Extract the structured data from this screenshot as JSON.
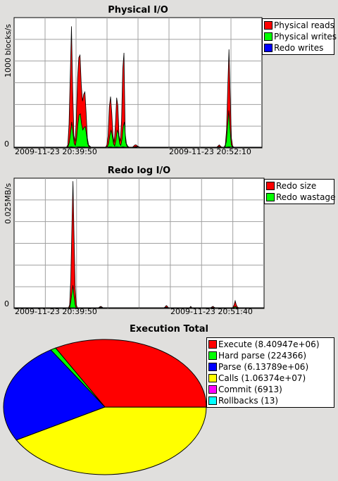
{
  "chart_data": [
    {
      "type": "area",
      "title": "Physical I/O",
      "ylabel": "1000 blocks/s",
      "yticks": [
        "0",
        "1000"
      ],
      "ylim": [
        0,
        1120
      ],
      "xticks": [
        "2009-11-23 20:39:50",
        "2009-11-23 20:52:10"
      ],
      "legend": "right",
      "grid": true,
      "series": [
        {
          "name": "Physical reads",
          "color": "#ff0000",
          "values": [
            0,
            0,
            0,
            0,
            0,
            0,
            0,
            0,
            0,
            0,
            0,
            0,
            0,
            0,
            0,
            0,
            0,
            0,
            0,
            0,
            0,
            0,
            0,
            0,
            0,
            0,
            0,
            0,
            0,
            0,
            0,
            0,
            0,
            0,
            0,
            0,
            0,
            0,
            0,
            0,
            0,
            0,
            0,
            0,
            20,
            200,
            620,
            1050,
            500,
            100,
            50,
            250,
            600,
            780,
            800,
            550,
            400,
            460,
            480,
            300,
            80,
            20,
            10,
            0,
            0,
            0,
            0,
            0,
            0,
            0,
            0,
            0,
            0,
            0,
            0,
            0,
            20,
            100,
            350,
            440,
            300,
            100,
            40,
            200,
            430,
            360,
            100,
            50,
            230,
            680,
            820,
            120,
            30,
            10,
            0,
            0,
            0,
            0,
            10,
            20,
            20,
            10,
            5,
            0,
            0,
            0,
            0,
            0,
            0,
            0,
            0,
            0,
            0,
            0,
            0,
            0,
            0,
            0,
            0,
            0,
            0,
            0,
            0,
            0,
            0,
            0,
            0,
            0,
            0,
            0,
            0,
            0,
            0,
            0,
            0,
            0,
            0,
            0,
            0,
            0,
            0,
            0,
            0,
            0,
            0,
            0,
            0,
            0,
            0,
            0,
            0,
            0,
            0,
            0,
            0,
            0,
            0,
            0,
            0,
            0,
            0,
            0,
            0,
            0,
            0,
            0,
            0,
            10,
            20,
            10,
            0,
            0,
            0,
            20,
            150,
            520,
            850,
            450,
            80,
            10,
            0,
            0,
            0,
            0,
            0,
            0,
            0,
            0,
            0,
            0,
            0,
            0,
            0,
            0,
            0,
            0,
            0,
            0,
            0,
            0,
            0,
            0,
            0,
            0
          ]
        },
        {
          "name": "Physical writes",
          "color": "#00ff00",
          "values": [
            0,
            0,
            0,
            0,
            0,
            0,
            0,
            0,
            0,
            0,
            0,
            0,
            0,
            0,
            0,
            0,
            0,
            0,
            0,
            0,
            0,
            0,
            0,
            0,
            0,
            0,
            0,
            0,
            0,
            0,
            0,
            0,
            0,
            0,
            0,
            0,
            0,
            0,
            0,
            0,
            0,
            0,
            0,
            0,
            5,
            40,
            120,
            220,
            120,
            30,
            15,
            80,
            200,
            280,
            290,
            200,
            150,
            170,
            180,
            110,
            30,
            5,
            2,
            0,
            0,
            0,
            0,
            0,
            0,
            0,
            0,
            0,
            0,
            0,
            0,
            0,
            5,
            30,
            100,
            150,
            100,
            30,
            10,
            60,
            150,
            120,
            30,
            15,
            70,
            180,
            220,
            40,
            10,
            3,
            0,
            0,
            0,
            0,
            2,
            5,
            5,
            2,
            1,
            0,
            0,
            0,
            0,
            0,
            0,
            0,
            0,
            0,
            0,
            0,
            0,
            0,
            0,
            0,
            0,
            0,
            0,
            0,
            0,
            0,
            0,
            0,
            0,
            0,
            0,
            0,
            0,
            0,
            0,
            0,
            0,
            0,
            0,
            0,
            0,
            0,
            0,
            0,
            0,
            0,
            0,
            0,
            0,
            0,
            0,
            0,
            0,
            0,
            0,
            0,
            0,
            0,
            0,
            0,
            0,
            0,
            0,
            0,
            0,
            0,
            0,
            0,
            2,
            5,
            2,
            0,
            0,
            0,
            5,
            50,
            180,
            320,
            160,
            20,
            2,
            0,
            0,
            0,
            0,
            0,
            0,
            0,
            0,
            0,
            0,
            0,
            0,
            0,
            0,
            0,
            0,
            0,
            0,
            0,
            0,
            0,
            0,
            0,
            0
          ]
        },
        {
          "name": "Redo writes",
          "color": "#0000ff",
          "values": [
            0,
            0,
            0,
            0,
            0,
            0,
            0,
            0,
            0,
            0,
            0,
            0,
            0,
            0,
            0,
            0,
            0,
            0,
            0,
            0,
            0,
            0,
            0,
            0,
            0,
            0,
            0,
            0,
            0,
            0,
            0,
            0,
            0,
            0,
            0,
            0,
            0,
            0,
            0,
            0,
            0,
            0,
            0,
            0,
            0,
            1,
            2,
            3,
            2,
            1,
            0,
            1,
            2,
            3,
            3,
            2,
            2,
            2,
            2,
            1,
            1,
            0,
            0,
            0,
            0,
            0,
            0,
            0,
            0,
            0,
            0,
            0,
            0,
            0,
            0,
            0,
            0,
            1,
            2,
            2,
            2,
            1,
            0,
            1,
            2,
            2,
            1,
            0,
            1,
            2,
            3,
            1,
            0,
            0,
            0,
            0,
            0,
            0,
            0,
            0,
            0,
            0,
            0,
            0,
            0,
            0,
            0,
            0,
            0,
            0,
            0,
            0,
            0,
            0,
            0,
            0,
            0,
            0,
            0,
            0,
            0,
            0,
            0,
            0,
            0,
            0,
            0,
            0,
            0,
            0,
            0,
            0,
            0,
            0,
            0,
            0,
            0,
            0,
            0,
            0,
            0,
            0,
            0,
            0,
            0,
            0,
            0,
            0,
            0,
            0,
            0,
            0,
            0,
            0,
            0,
            0,
            0,
            0,
            0,
            0,
            0,
            0,
            0,
            0,
            0,
            0,
            0,
            0,
            0,
            0,
            0,
            0,
            0,
            0,
            0,
            1,
            2,
            3,
            2,
            1,
            0,
            0,
            0,
            0,
            0,
            0,
            0,
            0,
            0,
            0,
            0,
            0,
            0,
            0,
            0,
            0,
            0,
            0,
            0,
            0,
            0,
            0,
            0,
            0,
            0
          ]
        }
      ]
    },
    {
      "type": "area",
      "title": "Redo log I/O",
      "ylabel": "MB/s",
      "yticks": [
        "0",
        "0.025"
      ],
      "ylim": [
        0,
        0.0458
      ],
      "xticks": [
        "2009-11-23 20:39:50",
        "2009-11-23 20:51:40"
      ],
      "legend": "right",
      "grid": true,
      "series": [
        {
          "name": "Redo size",
          "color": "#ff0000",
          "values": [
            0,
            0,
            0,
            0,
            0,
            0,
            0,
            0,
            0,
            0,
            0,
            0,
            0,
            0,
            0,
            0,
            0,
            0,
            0,
            0,
            0,
            0,
            0,
            0,
            0,
            0,
            0,
            0,
            0,
            0,
            0,
            0,
            0,
            0,
            0,
            0,
            0,
            0,
            0,
            0,
            0,
            0,
            0,
            0,
            0,
            0,
            0,
            0,
            0,
            0,
            0.001,
            0.01,
            0.028,
            0.045,
            0.025,
            0.007,
            0.001,
            0,
            0,
            0,
            0,
            0,
            0,
            0,
            0,
            0,
            0,
            0,
            0,
            0,
            0,
            0,
            0,
            0,
            0,
            0,
            0,
            0.0003,
            0.0005,
            0.0003,
            0,
            0,
            0,
            0,
            0,
            0,
            0,
            0,
            0,
            0,
            0,
            0,
            0,
            0,
            0,
            0,
            0,
            0,
            0,
            0,
            0,
            0,
            0,
            0,
            0,
            0,
            0,
            0,
            0,
            0,
            0,
            0,
            0,
            0,
            0,
            0,
            0,
            0,
            0,
            0,
            0,
            0,
            0,
            0,
            0,
            0,
            0,
            0,
            0,
            0,
            0,
            0,
            0,
            0,
            0,
            0,
            0.0003,
            0.0008,
            0.0005,
            0,
            0,
            0,
            0,
            0,
            0,
            0,
            0,
            0,
            0,
            0,
            0,
            0,
            0,
            0,
            0,
            0,
            0,
            0,
            0,
            0.0005,
            0,
            0,
            0,
            0,
            0,
            0,
            0,
            0,
            0,
            0,
            0,
            0,
            0,
            0,
            0,
            0,
            0,
            0,
            0.0003,
            0.0005,
            0.0002,
            0,
            0,
            0,
            0,
            0,
            0,
            0,
            0,
            0,
            0,
            0,
            0,
            0,
            0,
            0,
            0,
            0.0002,
            0.001,
            0.0025,
            0.001,
            0.0003,
            0,
            0,
            0,
            0,
            0,
            0,
            0,
            0,
            0,
            0,
            0,
            0,
            0,
            0,
            0,
            0,
            0,
            0,
            0,
            0,
            0,
            0,
            0,
            0
          ]
        },
        {
          "name": "Redo wastage",
          "color": "#00ff00",
          "values": [
            0,
            0,
            0,
            0,
            0,
            0,
            0,
            0,
            0,
            0,
            0,
            0,
            0,
            0,
            0,
            0,
            0,
            0,
            0,
            0,
            0,
            0,
            0,
            0,
            0,
            0,
            0,
            0,
            0,
            0,
            0,
            0,
            0,
            0,
            0,
            0,
            0,
            0,
            0,
            0,
            0,
            0,
            0,
            0,
            0,
            0,
            0,
            0,
            0,
            0,
            0,
            0.002,
            0.005,
            0.008,
            0.004,
            0.001,
            0,
            0,
            0,
            0,
            0,
            0,
            0,
            0,
            0,
            0,
            0,
            0,
            0,
            0,
            0,
            0,
            0,
            0,
            0,
            0,
            0,
            0.0001,
            0.0002,
            0.0001,
            0,
            0,
            0,
            0,
            0,
            0,
            0,
            0,
            0,
            0,
            0,
            0,
            0,
            0,
            0,
            0,
            0,
            0,
            0,
            0,
            0,
            0,
            0,
            0,
            0,
            0,
            0,
            0,
            0,
            0,
            0,
            0,
            0,
            0,
            0,
            0,
            0,
            0,
            0,
            0,
            0,
            0,
            0,
            0,
            0,
            0,
            0,
            0,
            0,
            0,
            0,
            0,
            0,
            0,
            0,
            0,
            0.0001,
            0.0002,
            0.0001,
            0,
            0,
            0,
            0,
            0,
            0,
            0,
            0,
            0,
            0,
            0,
            0,
            0,
            0,
            0,
            0,
            0,
            0,
            0,
            0,
            0.0001,
            0,
            0,
            0,
            0,
            0,
            0,
            0,
            0,
            0,
            0,
            0,
            0,
            0,
            0,
            0,
            0,
            0,
            0,
            0.0001,
            0.0001,
            0,
            0,
            0,
            0,
            0,
            0,
            0,
            0,
            0,
            0,
            0,
            0,
            0,
            0,
            0,
            0,
            0,
            0,
            0.0002,
            0.0005,
            0.0002,
            0,
            0,
            0,
            0,
            0,
            0,
            0,
            0,
            0,
            0,
            0,
            0,
            0,
            0,
            0,
            0,
            0,
            0,
            0,
            0,
            0,
            0,
            0,
            0,
            0
          ]
        }
      ]
    },
    {
      "type": "pie",
      "title": "Execution Total",
      "legend": "right",
      "slices": [
        {
          "label": "Execute (8.40947e+06)",
          "value": 8409470,
          "color": "#ff0000"
        },
        {
          "label": "Hard parse (224366)",
          "value": 224366,
          "color": "#00ff00"
        },
        {
          "label": "Parse (6.13789e+06)",
          "value": 6137890,
          "color": "#0000ff"
        },
        {
          "label": "Calls (1.06374e+07)",
          "value": 10637400,
          "color": "#ffff00"
        },
        {
          "label": "Commit (6913)",
          "value": 6913,
          "color": "#ff00ff"
        },
        {
          "label": "Rollbacks (13)",
          "value": 13,
          "color": "#00ffff"
        }
      ]
    }
  ]
}
